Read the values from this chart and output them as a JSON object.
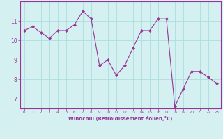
{
  "x": [
    0,
    1,
    2,
    3,
    4,
    5,
    6,
    7,
    8,
    9,
    10,
    11,
    12,
    13,
    14,
    15,
    16,
    17,
    18,
    19,
    20,
    21,
    22,
    23
  ],
  "y": [
    10.5,
    10.7,
    10.4,
    10.1,
    10.5,
    10.5,
    10.8,
    11.5,
    11.1,
    8.7,
    9.0,
    8.2,
    8.7,
    9.6,
    10.5,
    10.5,
    11.1,
    11.1,
    6.6,
    7.5,
    8.4,
    8.4,
    8.1,
    7.8
  ],
  "xlabel": "Windchill (Refroidissement éolien,°C)",
  "line_color": "#993399",
  "marker_color": "#993399",
  "bg_color": "#d4f0f0",
  "grid_color": "#aadddd",
  "axis_color": "#993399",
  "tick_color": "#993399",
  "ylim": [
    6.5,
    12.0
  ],
  "xlim": [
    -0.5,
    23.5
  ],
  "yticks": [
    7,
    8,
    9,
    10,
    11
  ],
  "xticks": [
    0,
    1,
    2,
    3,
    4,
    5,
    6,
    7,
    8,
    9,
    10,
    11,
    12,
    13,
    14,
    15,
    16,
    17,
    18,
    19,
    20,
    21,
    22,
    23
  ]
}
